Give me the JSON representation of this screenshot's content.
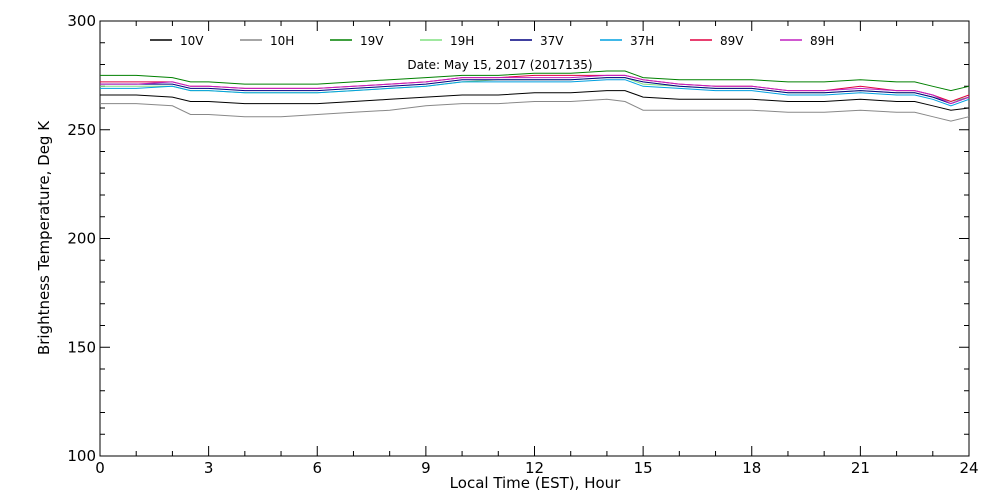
{
  "chart_data": {
    "type": "line",
    "title": "",
    "xlabel": "Local Time (EST), Hour",
    "ylabel": "Brightness Temperature, Deg K",
    "annotation": "Date: May 15, 2017 (2017135)",
    "xlim": [
      0,
      24
    ],
    "ylim": [
      100,
      300
    ],
    "xticks": [
      0,
      3,
      6,
      9,
      12,
      15,
      18,
      21,
      24
    ],
    "yticks": [
      100,
      150,
      200,
      250,
      300
    ],
    "grid": false,
    "legend_position": "top",
    "x": [
      0,
      1,
      2,
      2.5,
      3,
      4,
      5,
      6,
      7,
      8,
      9,
      10,
      11,
      12,
      13,
      14,
      14.5,
      15,
      16,
      17,
      18,
      19,
      20,
      21,
      22,
      22.5,
      23,
      23.5,
      24
    ],
    "series": [
      {
        "name": "10V",
        "color": "#000000",
        "values": [
          266,
          266,
          265,
          263,
          263,
          262,
          262,
          262,
          263,
          264,
          265,
          266,
          266,
          267,
          267,
          268,
          268,
          265,
          264,
          264,
          264,
          263,
          263,
          264,
          263,
          263,
          261,
          259,
          260
        ]
      },
      {
        "name": "10H",
        "color": "#888888",
        "values": [
          262,
          262,
          261,
          257,
          257,
          256,
          256,
          257,
          258,
          259,
          261,
          262,
          262,
          263,
          263,
          264,
          263,
          259,
          259,
          259,
          259,
          258,
          258,
          259,
          258,
          258,
          256,
          254,
          256
        ]
      },
      {
        "name": "19V",
        "color": "#008000",
        "values": [
          275,
          275,
          274,
          272,
          272,
          271,
          271,
          271,
          272,
          273,
          274,
          275,
          275,
          276,
          276,
          277,
          277,
          274,
          273,
          273,
          273,
          272,
          272,
          273,
          272,
          272,
          270,
          268,
          270
        ]
      },
      {
        "name": "19H",
        "color": "#80e080",
        "values": [
          270,
          270,
          270,
          268,
          268,
          267,
          267,
          267,
          268,
          269,
          270,
          272,
          273,
          273,
          273,
          274,
          274,
          271,
          270,
          269,
          269,
          267,
          267,
          268,
          267,
          267,
          265,
          263,
          265
        ]
      },
      {
        "name": "37V",
        "color": "#000080",
        "values": [
          271,
          271,
          271,
          269,
          269,
          268,
          268,
          268,
          269,
          270,
          271,
          273,
          273,
          273,
          273,
          274,
          274,
          272,
          270,
          269,
          269,
          267,
          267,
          268,
          267,
          267,
          265,
          262,
          265
        ]
      },
      {
        "name": "37H",
        "color": "#00a0e0",
        "values": [
          269,
          269,
          270,
          268,
          268,
          267,
          267,
          267,
          268,
          269,
          270,
          272,
          272,
          272,
          272,
          273,
          273,
          270,
          269,
          268,
          268,
          266,
          266,
          267,
          266,
          266,
          264,
          261,
          264
        ]
      },
      {
        "name": "89V",
        "color": "#e00040",
        "values": [
          272,
          272,
          272,
          270,
          270,
          269,
          269,
          269,
          270,
          271,
          272,
          274,
          274,
          275,
          275,
          275,
          275,
          273,
          271,
          270,
          270,
          268,
          268,
          270,
          268,
          268,
          266,
          263,
          266
        ]
      },
      {
        "name": "89H",
        "color": "#c020c0",
        "values": [
          271,
          271,
          272,
          270,
          270,
          269,
          269,
          269,
          270,
          271,
          272,
          274,
          274,
          274,
          274,
          275,
          275,
          273,
          271,
          270,
          270,
          268,
          268,
          269,
          268,
          268,
          266,
          262,
          265
        ]
      }
    ]
  }
}
